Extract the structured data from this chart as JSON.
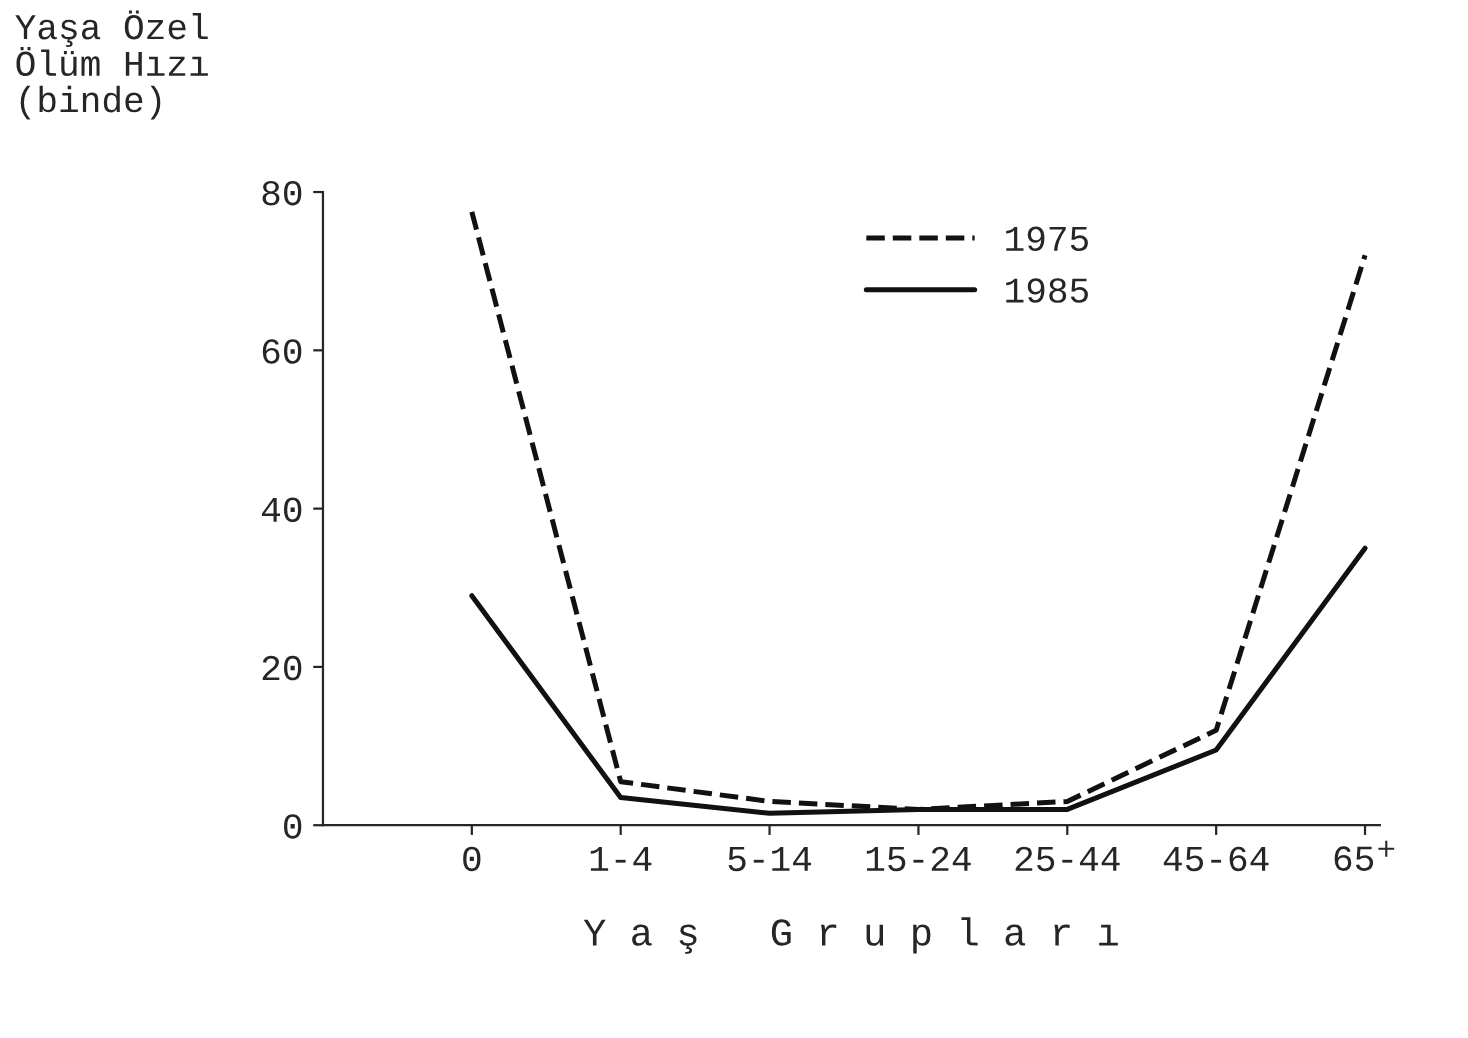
{
  "chart_data": {
    "type": "line",
    "ylabel": "Yaşa Özel\nÖlüm Hızı\n(binde)",
    "xlabel": "Y a ş   G r u p l a r ı",
    "categories": [
      "0",
      "1-4",
      "5-14",
      "15-24",
      "25-44",
      "45-64",
      "65$^{+}$"
    ],
    "series": [
      {
        "name": "1975",
        "color": "#111111",
        "line_style": "dashed",
        "values": [
          77.5,
          5.5,
          3,
          2,
          3,
          12,
          72
        ]
      },
      {
        "name": "1985",
        "color": "#111111",
        "line_style": "solid",
        "values": [
          29,
          3.5,
          1.5,
          2,
          2,
          9.5,
          35
        ]
      }
    ],
    "ylim": [
      0,
      80
    ],
    "yticks": [
      0,
      20,
      40,
      60,
      80
    ],
    "grid": false,
    "legend": "top",
    "marker": "none"
  }
}
